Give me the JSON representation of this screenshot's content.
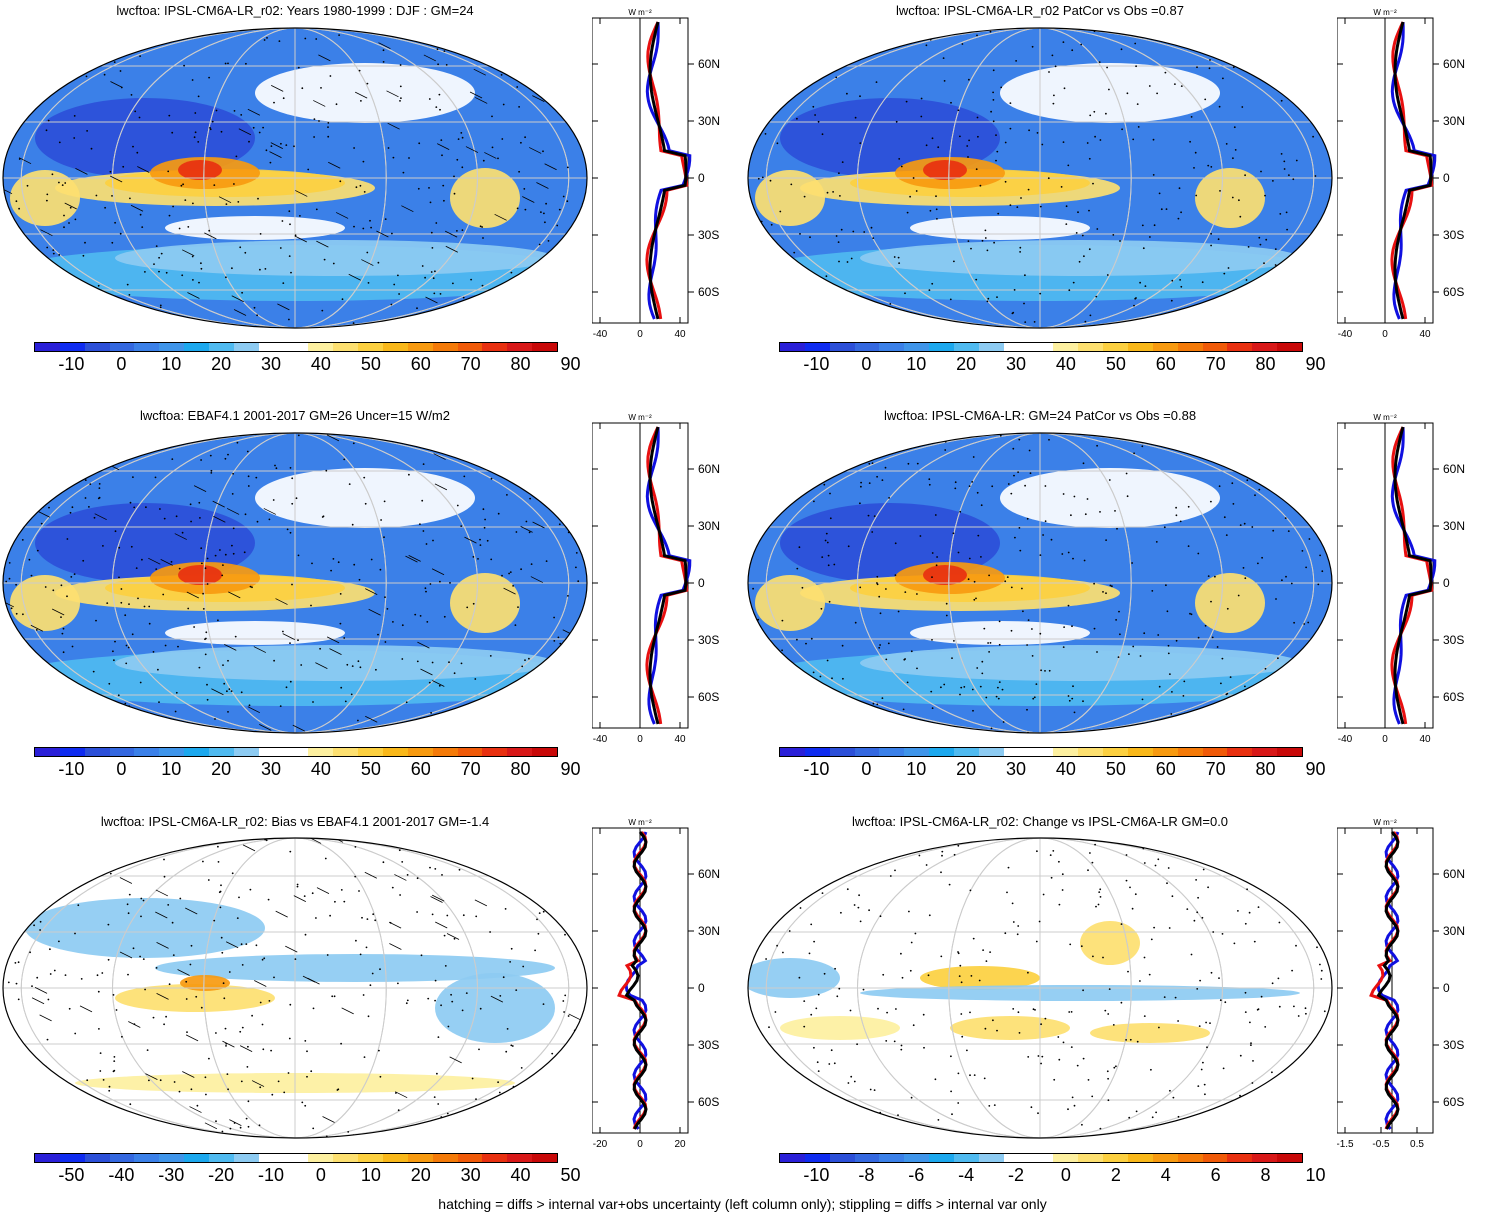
{
  "footer": "hatching = diffs > internal var+obs uncertainty (left column only); stippling = diffs > internal var only",
  "zonal_unit": "W m⁻²",
  "lat_labels": [
    "60N",
    "30N",
    "0",
    "30S",
    "60S"
  ],
  "palette": [
    "#2a1fd8",
    "#0f2bf0",
    "#2c4fd8",
    "#3468e0",
    "#3b80e8",
    "#3f95ea",
    "#1ca8ee",
    "#4fbaf0",
    "#8dcbf2",
    "#ffffff",
    "#ffffff",
    "#fdf0a0",
    "#fde070",
    "#fcd040",
    "#f9b81a",
    "#f79a10",
    "#f47a08",
    "#f05a08",
    "#e83010",
    "#d81818",
    "#c80808"
  ],
  "colors": {
    "blue": "#1010e0",
    "red": "#e81010",
    "black": "#000000"
  },
  "panels": [
    {
      "id": "p1",
      "title": "lwcftoa: IPSL-CM6A-LR_r02: Years 1980-1999 : DJF : GM=24",
      "cbar_labels": [
        "-10",
        "0",
        "10",
        "20",
        "30",
        "40",
        "50",
        "60",
        "70",
        "80",
        "90"
      ],
      "zonal_ticks": [
        "-40",
        "0",
        "40"
      ],
      "hatch": true
    },
    {
      "id": "p2",
      "title": "lwcftoa: IPSL-CM6A-LR_r02 PatCor vs Obs =0.87",
      "cbar_labels": [
        "-10",
        "0",
        "10",
        "20",
        "30",
        "40",
        "50",
        "60",
        "70",
        "80",
        "90"
      ],
      "zonal_ticks": [
        "-40",
        "0",
        "40"
      ],
      "hatch": false
    },
    {
      "id": "p3",
      "title": "lwcftoa: EBAF4.1 2001-2017 GM=26 Uncer=15 W/m2",
      "cbar_labels": [
        "-10",
        "0",
        "10",
        "20",
        "30",
        "40",
        "50",
        "60",
        "70",
        "80",
        "90"
      ],
      "zonal_ticks": [
        "-40",
        "0",
        "40"
      ],
      "hatch": true
    },
    {
      "id": "p4",
      "title": "lwcftoa: IPSL-CM6A-LR: GM=24 PatCor vs Obs =0.88",
      "cbar_labels": [
        "-10",
        "0",
        "10",
        "20",
        "30",
        "40",
        "50",
        "60",
        "70",
        "80",
        "90"
      ],
      "zonal_ticks": [
        "-40",
        "0",
        "40"
      ],
      "hatch": false
    },
    {
      "id": "p5",
      "title": "lwcftoa: IPSL-CM6A-LR_r02: Bias vs EBAF4.1 2001-2017 GM=-1.4",
      "cbar_labels": [
        "-50",
        "-40",
        "-30",
        "-20",
        "-10",
        "0",
        "10",
        "20",
        "30",
        "40",
        "50"
      ],
      "zonal_ticks": [
        "-20",
        "0",
        "20"
      ],
      "hatch": true
    },
    {
      "id": "p6",
      "title": "lwcftoa: IPSL-CM6A-LR_r02: Change vs IPSL-CM6A-LR GM=0.0",
      "cbar_labels": [
        "-10",
        "-8",
        "-6",
        "-4",
        "-2",
        "0",
        "2",
        "4",
        "6",
        "8",
        "10"
      ],
      "zonal_ticks": [
        "-1.5",
        "-0.5",
        "0.5"
      ],
      "hatch": false
    }
  ]
}
